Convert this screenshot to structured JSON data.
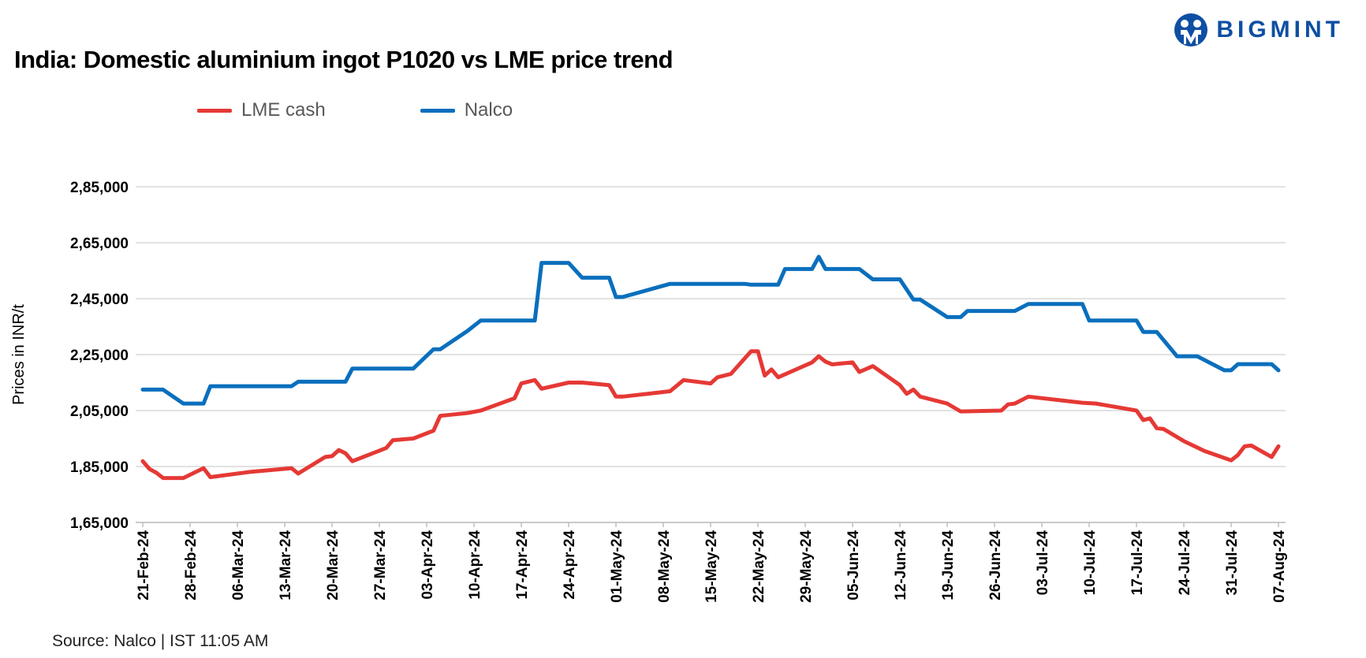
{
  "title": "India: Domestic aluminium ingot P1020 vs LME price trend",
  "logo": {
    "text": "BIGMINT",
    "color": "#0e4fa3"
  },
  "source": "Source: Nalco | IST 11:05 AM",
  "chart_data": {
    "type": "line",
    "title": "India: Domestic aluminium ingot P1020 vs LME price trend",
    "ylabel": "Prices in INR/t",
    "xlabel": "",
    "ylim": [
      165000,
      285000
    ],
    "yticks": [
      165000,
      185000,
      205000,
      225000,
      245000,
      265000,
      285000
    ],
    "ytick_labels": [
      "1,65,000",
      "1,85,000",
      "2,05,000",
      "2,25,000",
      "2,45,000",
      "2,65,000",
      "2,85,000"
    ],
    "xlim": [
      "2024-02-21",
      "2024-08-07"
    ],
    "xtick_dates": [
      "2024-02-21",
      "2024-02-28",
      "2024-03-06",
      "2024-03-13",
      "2024-03-20",
      "2024-03-27",
      "2024-04-03",
      "2024-04-10",
      "2024-04-17",
      "2024-04-24",
      "2024-05-01",
      "2024-05-08",
      "2024-05-15",
      "2024-05-22",
      "2024-05-29",
      "2024-06-05",
      "2024-06-12",
      "2024-06-19",
      "2024-06-26",
      "2024-07-03",
      "2024-07-10",
      "2024-07-17",
      "2024-07-24",
      "2024-07-31",
      "2024-08-07"
    ],
    "xtick_labels": [
      "21-Feb-24",
      "28-Feb-24",
      "06-Mar-24",
      "13-Mar-24",
      "20-Mar-24",
      "27-Mar-24",
      "03-Apr-24",
      "10-Apr-24",
      "17-Apr-24",
      "24-Apr-24",
      "01-May-24",
      "08-May-24",
      "15-May-24",
      "22-May-24",
      "29-May-24",
      "05-Jun-24",
      "12-Jun-24",
      "19-Jun-24",
      "26-Jun-24",
      "03-Jul-24",
      "10-Jul-24",
      "17-Jul-24",
      "24-Jul-24",
      "31-Jul-24",
      "07-Aug-24"
    ],
    "grid": true,
    "legend_position": "top-left",
    "series": [
      {
        "name": "LME cash",
        "color": "#e53935",
        "x": [
          "2024-02-21",
          "2024-02-22",
          "2024-02-23",
          "2024-02-24",
          "2024-02-27",
          "2024-03-01",
          "2024-03-02",
          "2024-03-08",
          "2024-03-14",
          "2024-03-15",
          "2024-03-19",
          "2024-03-20",
          "2024-03-21",
          "2024-03-22",
          "2024-03-23",
          "2024-03-28",
          "2024-03-29",
          "2024-04-01",
          "2024-04-04",
          "2024-04-05",
          "2024-04-09",
          "2024-04-11",
          "2024-04-16",
          "2024-04-17",
          "2024-04-19",
          "2024-04-20",
          "2024-04-24",
          "2024-04-26",
          "2024-04-30",
          "2024-05-01",
          "2024-05-02",
          "2024-05-09",
          "2024-05-11",
          "2024-05-15",
          "2024-05-16",
          "2024-05-18",
          "2024-05-21",
          "2024-05-22",
          "2024-05-23",
          "2024-05-24",
          "2024-05-25",
          "2024-05-30",
          "2024-05-31",
          "2024-06-01",
          "2024-06-02",
          "2024-06-05",
          "2024-06-06",
          "2024-06-08",
          "2024-06-12",
          "2024-06-13",
          "2024-06-14",
          "2024-06-15",
          "2024-06-19",
          "2024-06-21",
          "2024-06-27",
          "2024-06-28",
          "2024-06-29",
          "2024-07-01",
          "2024-07-09",
          "2024-07-11",
          "2024-07-17",
          "2024-07-18",
          "2024-07-19",
          "2024-07-20",
          "2024-07-21",
          "2024-07-24",
          "2024-07-27",
          "2024-07-31",
          "2024-08-01",
          "2024-08-02",
          "2024-08-03",
          "2024-08-06",
          "2024-08-07"
        ],
        "values": [
          186900,
          184100,
          182800,
          180900,
          180900,
          184400,
          181200,
          183100,
          184400,
          182500,
          188400,
          188700,
          190900,
          189700,
          186900,
          191600,
          194400,
          195000,
          197800,
          203100,
          204100,
          205000,
          209400,
          214700,
          215900,
          212800,
          215000,
          215000,
          214100,
          210000,
          210000,
          211900,
          215900,
          214700,
          216900,
          218100,
          226200,
          226200,
          217500,
          219700,
          216900,
          222200,
          224400,
          222500,
          221500,
          222200,
          218800,
          220900,
          214100,
          211000,
          212500,
          210000,
          207500,
          204700,
          205000,
          207200,
          207500,
          210000,
          207800,
          207500,
          205000,
          201600,
          202200,
          198700,
          198400,
          194100,
          190600,
          187200,
          189100,
          192200,
          192500,
          188400,
          192200
        ]
      },
      {
        "name": "Nalco",
        "color": "#0a6fbd",
        "x": [
          "2024-02-21",
          "2024-02-24",
          "2024-02-27",
          "2024-03-01",
          "2024-03-02",
          "2024-03-14",
          "2024-03-15",
          "2024-03-22",
          "2024-03-23",
          "2024-04-01",
          "2024-04-04",
          "2024-04-05",
          "2024-04-09",
          "2024-04-11",
          "2024-04-19",
          "2024-04-20",
          "2024-04-24",
          "2024-04-26",
          "2024-04-30",
          "2024-05-01",
          "2024-05-02",
          "2024-05-09",
          "2024-05-20",
          "2024-05-21",
          "2024-05-25",
          "2024-05-26",
          "2024-05-30",
          "2024-05-31",
          "2024-06-01",
          "2024-06-06",
          "2024-06-08",
          "2024-06-12",
          "2024-06-14",
          "2024-06-15",
          "2024-06-19",
          "2024-06-21",
          "2024-06-22",
          "2024-06-29",
          "2024-07-01",
          "2024-07-09",
          "2024-07-10",
          "2024-07-17",
          "2024-07-18",
          "2024-07-20",
          "2024-07-23",
          "2024-07-26",
          "2024-07-30",
          "2024-07-31",
          "2024-08-01",
          "2024-08-06",
          "2024-08-07"
        ],
        "values": [
          212500,
          212500,
          207500,
          207500,
          213700,
          213700,
          215300,
          215300,
          220000,
          220000,
          226900,
          226900,
          233400,
          237200,
          237200,
          257800,
          257800,
          252500,
          252500,
          245600,
          245600,
          250300,
          250300,
          250000,
          250000,
          255600,
          255600,
          260000,
          255600,
          255600,
          251900,
          251900,
          244700,
          244700,
          238400,
          238400,
          240600,
          240600,
          243100,
          243100,
          237200,
          237200,
          233100,
          233100,
          224400,
          224400,
          219400,
          219400,
          221600,
          221600,
          219400
        ]
      }
    ]
  }
}
